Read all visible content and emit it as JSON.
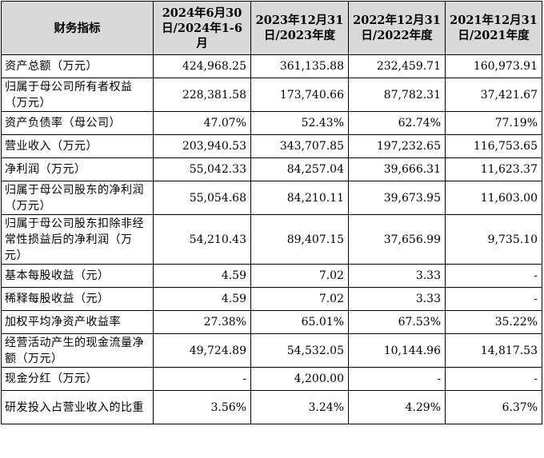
{
  "headers": [
    "财务指标",
    "2024年6月30日/2024年1-6月",
    "2023年12月31日/2023年度",
    "2022年12月31日/2022年度",
    "2021年12月31日/2021年度"
  ],
  "rows": [
    {
      "label": "资产总额（万元）",
      "values": [
        "424,968.25",
        "361,135.88",
        "232,459.71",
        "160,973.91"
      ]
    },
    {
      "label": "归属于母公司所有者权益（万元）",
      "values": [
        "228,381.58",
        "173,740.66",
        "87,782.31",
        "37,421.67"
      ]
    },
    {
      "label": "资产负债率（母公司）",
      "values": [
        "47.07%",
        "52.43%",
        "62.74%",
        "77.19%"
      ]
    },
    {
      "label": "营业收入（万元）",
      "values": [
        "203,940.53",
        "343,707.85",
        "197,232.65",
        "116,753.65"
      ]
    },
    {
      "label": "净利润（万元）",
      "values": [
        "55,042.33",
        "84,257.04",
        "39,666.31",
        "11,623.37"
      ]
    },
    {
      "label": "归属于母公司股东的净利润（万元）",
      "values": [
        "55,054.68",
        "84,210.11",
        "39,673.95",
        "11,603.00"
      ]
    },
    {
      "label": "归属于母公司股东扣除非经常性损益后的净利润（万元）",
      "values": [
        "54,210.43",
        "89,407.15",
        "37,656.99",
        "9,735.10"
      ]
    },
    {
      "label": "基本每股收益（元）",
      "values": [
        "4.59",
        "7.02",
        "3.33",
        "-"
      ]
    },
    {
      "label": "稀释每股收益（元）",
      "values": [
        "4.59",
        "7.02",
        "3.33",
        "-"
      ]
    },
    {
      "label": "加权平均净资产收益率",
      "values": [
        "27.38%",
        "65.01%",
        "67.53%",
        "35.22%"
      ]
    },
    {
      "label": "经营活动产生的现金流量净额（万元）",
      "values": [
        "49,724.89",
        "54,532.05",
        "10,144.96",
        "14,817.53"
      ]
    },
    {
      "label": "现金分红（万元）",
      "values": [
        "-",
        "4,200.00",
        "-",
        "-"
      ]
    },
    {
      "label": "研发投入占营业收入的比重",
      "values": [
        "3.56%",
        "3.24%",
        "4.29%",
        "6.37%"
      ]
    }
  ]
}
